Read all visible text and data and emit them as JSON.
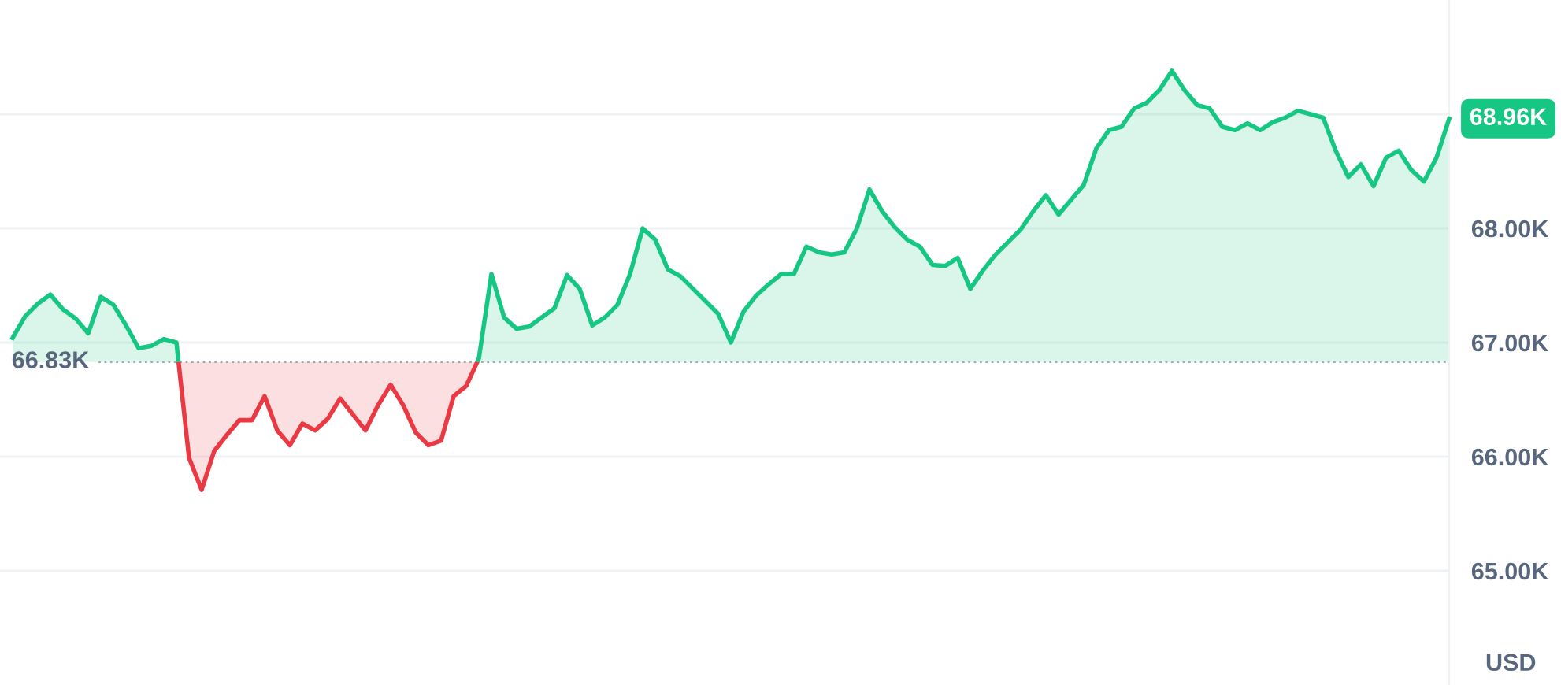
{
  "chart_data": {
    "type": "area",
    "categories": [
      null,
      null,
      null,
      null,
      null,
      null,
      null,
      null,
      null,
      null,
      null,
      null,
      null,
      null,
      null,
      null,
      null,
      null,
      null,
      null,
      null,
      null,
      null,
      null,
      null,
      null,
      null,
      null,
      null,
      null,
      null,
      null,
      null,
      null,
      null,
      null,
      null,
      null,
      null,
      null,
      null,
      null,
      null,
      null,
      null,
      null,
      null,
      null,
      null,
      null,
      null,
      null,
      null,
      null,
      null,
      null,
      null,
      null,
      null,
      null,
      null,
      null,
      null,
      null,
      null,
      null,
      null,
      null,
      null,
      null,
      null,
      null,
      null,
      null,
      null,
      null,
      null,
      null,
      null,
      null,
      null,
      null,
      null,
      null,
      null,
      null,
      null,
      null,
      null,
      null,
      null,
      null,
      null,
      null,
      null,
      null,
      null,
      null,
      null,
      null,
      null,
      null,
      null,
      null,
      null,
      null,
      null,
      null,
      null,
      null,
      null,
      null,
      null,
      null,
      null
    ],
    "series": [
      {
        "values": [
          67.04,
          67.23,
          67.34,
          67.42,
          67.29,
          67.21,
          67.08,
          67.4,
          67.33,
          67.15,
          66.95,
          66.97,
          67.03,
          67.0,
          65.99,
          65.71,
          66.05,
          66.19,
          66.32,
          66.32,
          66.53,
          66.23,
          66.1,
          66.29,
          66.23,
          66.33,
          66.51,
          66.37,
          66.23,
          66.45,
          66.63,
          66.45,
          66.21,
          66.1,
          66.14,
          66.53,
          66.62,
          66.86,
          67.6,
          67.22,
          67.12,
          67.14,
          67.22,
          67.3,
          67.59,
          67.47,
          67.15,
          67.22,
          67.33,
          67.6,
          68.0,
          67.9,
          67.64,
          67.58,
          67.47,
          67.36,
          67.25,
          67.0,
          67.27,
          67.41,
          67.51,
          67.6,
          67.6,
          67.84,
          67.79,
          67.77,
          67.79,
          68.0,
          68.34,
          68.15,
          68.01,
          67.9,
          67.84,
          67.68,
          67.67,
          67.74,
          67.47,
          67.63,
          67.77,
          67.88,
          67.99,
          68.15,
          68.29,
          68.12,
          68.25,
          68.38,
          68.7,
          68.86,
          68.89,
          69.05,
          69.1,
          69.21,
          69.38,
          69.21,
          69.08,
          69.05,
          68.89,
          68.86,
          68.92,
          68.86,
          68.93,
          68.97,
          69.03,
          69.0,
          68.97,
          68.68,
          68.45,
          68.56,
          68.37,
          68.62,
          68.68,
          68.51,
          68.41,
          68.62,
          68.96
        ],
        "colors": [
          "#16c784",
          "#16c784",
          "#16c784",
          "#16c784",
          "#16c784",
          "#16c784",
          "#16c784",
          "#16c784",
          "#16c784",
          "#16c784",
          "#16c784",
          "#16c784",
          "#16c784",
          "#16c784",
          "#ea3943",
          "#ea3943",
          "#ea3943",
          "#ea3943",
          "#ea3943",
          "#ea3943",
          "#ea3943",
          "#ea3943",
          "#ea3943",
          "#ea3943",
          "#ea3943",
          "#ea3943",
          "#ea3943",
          "#ea3943",
          "#ea3943",
          "#ea3943",
          "#ea3943",
          "#ea3943",
          "#ea3943",
          "#ea3943",
          "#ea3943",
          "#ea3943",
          "#ea3943",
          "#16c784",
          "#16c784",
          "#16c784",
          "#16c784",
          "#16c784",
          "#16c784",
          "#16c784",
          "#16c784",
          "#16c784",
          "#16c784",
          "#16c784",
          "#16c784",
          "#16c784",
          "#16c784",
          "#16c784",
          "#16c784",
          "#16c784",
          "#16c784",
          "#16c784",
          "#16c784",
          "#16c784",
          "#16c784",
          "#16c784",
          "#16c784",
          "#16c784",
          "#16c784",
          "#16c784",
          "#16c784",
          "#16c784",
          "#16c784",
          "#16c784",
          "#16c784",
          "#16c784",
          "#16c784",
          "#16c784",
          "#16c784",
          "#16c784",
          "#16c784",
          "#16c784",
          "#16c784",
          "#16c784",
          "#16c784",
          "#16c784",
          "#16c784",
          "#16c784",
          "#16c784",
          "#16c784",
          "#16c784",
          "#16c784",
          "#16c784",
          "#16c784",
          "#16c784",
          "#16c784",
          "#16c784",
          "#16c784",
          "#16c784",
          "#16c784",
          "#16c784",
          "#16c784",
          "#16c784",
          "#16c784",
          "#16c784",
          "#16c784",
          "#16c784",
          "#16c784",
          "#16c784",
          "#16c784",
          "#16c784",
          "#16c784",
          "#16c784",
          "#16c784",
          "#16c784",
          "#16c784",
          "#16c784",
          "#16c784",
          "#16c784",
          "#16c784",
          "#16c784"
        ]
      }
    ],
    "ylim": [
      64.0,
      70.0
    ],
    "yticks": [
      {
        "value": 65,
        "label": "65.00K"
      },
      {
        "value": 66,
        "label": "66.00K"
      },
      {
        "value": 67,
        "label": "67.00K"
      },
      {
        "value": 68,
        "label": "68.00K"
      },
      {
        "value": 69,
        "label": null
      }
    ],
    "ylabel": "USD",
    "grid": "y",
    "ref_lines": [
      {
        "axis": "y",
        "value": 66.83,
        "label": "66.83K",
        "color": "#a8adb8",
        "line_style": "dotted"
      }
    ],
    "annotations": [
      "68.96K"
    ]
  }
}
